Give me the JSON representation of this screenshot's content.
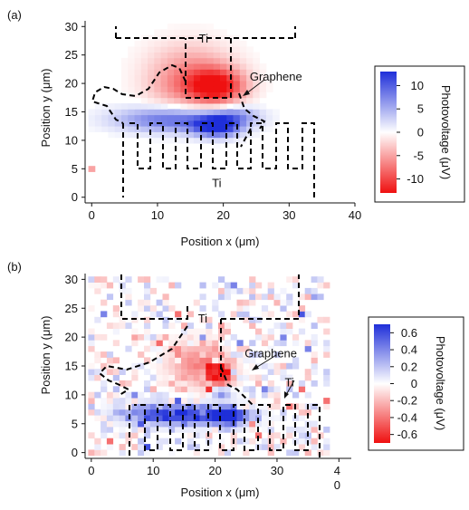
{
  "colors": {
    "positive": "#1f2fd9",
    "negative": "#ef1010",
    "neutral": "#ffffff",
    "outline": "#000000",
    "text": "#111111"
  },
  "chart_data": [
    {
      "panel_label": "(a)",
      "type": "heatmap",
      "xlabel": "Position x (μm)",
      "ylabel": "Position y (μm)",
      "xlim": [
        -1,
        40
      ],
      "ylim": [
        -1,
        31
      ],
      "x_ticks": [
        0,
        10,
        20,
        30,
        40
      ],
      "y_ticks": [
        0,
        5,
        10,
        15,
        20,
        25,
        30
      ],
      "grid": false,
      "colorbar": {
        "label": "Photovoltage (μV)",
        "range": [
          -13,
          13
        ],
        "ticks": [
          10,
          5,
          0,
          -5,
          -10
        ],
        "tick_labels": [
          "10",
          "5",
          "0",
          "-5",
          "-10"
        ]
      },
      "annotations": [
        {
          "text": "Ti",
          "x": 17,
          "y": 27.2
        },
        {
          "text": "Graphene",
          "x": 28,
          "y": 20.5
        },
        {
          "text": "Ti",
          "x": 19,
          "y": 1.8
        }
      ],
      "blobs": [
        {
          "x": 19,
          "y": 19.5,
          "value": -13,
          "sx": 3.0,
          "sy": 2.2
        },
        {
          "x": 15,
          "y": 22.5,
          "value": -5,
          "sx": 4.5,
          "sy": 3.5
        },
        {
          "x": 13,
          "y": 19,
          "value": -3,
          "sx": 3.5,
          "sy": 2.5
        },
        {
          "x": 19,
          "y": 12.5,
          "value": 13,
          "sx": 2.4,
          "sy": 1.3
        },
        {
          "x": 14,
          "y": 13.5,
          "value": 7,
          "sx": 6.0,
          "sy": 1.5
        },
        {
          "x": 9,
          "y": 14,
          "value": 3,
          "sx": 5.0,
          "sy": 1.5
        },
        {
          "x": 22,
          "y": 14.5,
          "value": 5,
          "sx": 2.5,
          "sy": 1.2
        },
        {
          "x": 0,
          "y": 5,
          "value": -5,
          "sx": 0.4,
          "sy": 0.4
        }
      ],
      "noise": 0
    },
    {
      "panel_label": "(b)",
      "type": "heatmap",
      "xlabel": "Position x (μm)",
      "ylabel": "Position y (μm)",
      "xlim": [
        -1,
        42
      ],
      "ylim": [
        -1,
        31
      ],
      "x_ticks": [
        0,
        10,
        20,
        30
      ],
      "x_tick_labels": [
        "0",
        "10",
        "20",
        "30"
      ],
      "x_tick_last": "4\n0",
      "y_ticks": [
        0,
        5,
        10,
        15,
        20,
        25,
        30
      ],
      "grid": false,
      "colorbar": {
        "label": "Photovoltage (μV)",
        "range": [
          -0.7,
          0.7
        ],
        "ticks": [
          0.6,
          0.4,
          0.2,
          0,
          -0.2,
          -0.4,
          -0.6
        ],
        "tick_labels": [
          "0.6",
          "0.4",
          "0.2",
          "0",
          "-0.2",
          "-0.4",
          "-0.6"
        ]
      },
      "annotations": [
        {
          "text": "Ti",
          "x": 18,
          "y": 22.5
        },
        {
          "text": "Graphene",
          "x": 29,
          "y": 16.5
        },
        {
          "text": "Ti",
          "x": 32,
          "y": 11.5
        }
      ],
      "blobs": [
        {
          "x": 20.5,
          "y": 13.5,
          "value": -0.7,
          "sx": 1.6,
          "sy": 1.6
        },
        {
          "x": 17,
          "y": 15.5,
          "value": -0.35,
          "sx": 3.0,
          "sy": 2.5
        },
        {
          "x": 22,
          "y": 6.5,
          "value": 0.7,
          "sx": 2.0,
          "sy": 1.0
        },
        {
          "x": 16,
          "y": 6.5,
          "value": 0.5,
          "sx": 6.0,
          "sy": 1.2
        },
        {
          "x": 11,
          "y": 7,
          "value": 0.3,
          "sx": 4.0,
          "sy": 1.2
        },
        {
          "x": 21,
          "y": 10.5,
          "value": 0.45,
          "sx": 1.2,
          "sy": 0.8
        }
      ],
      "noise": 0.22
    }
  ]
}
